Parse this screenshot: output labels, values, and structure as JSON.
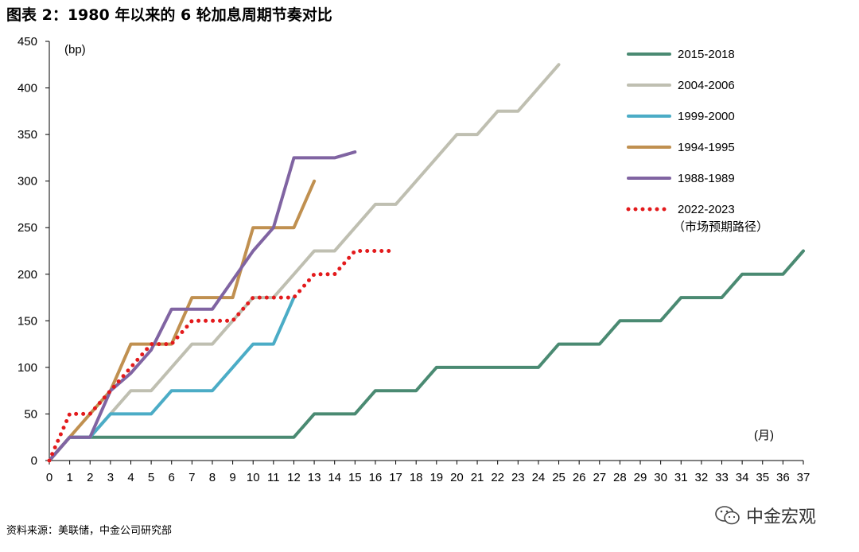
{
  "figure": {
    "title": "图表 2：1980 年以来的 6 轮加息周期节奏对比",
    "source": "资料来源：美联储，中金公司研究部",
    "brand": "中金宏观",
    "brand_icon": "wechat-icon"
  },
  "chart_data": {
    "type": "line",
    "title": "",
    "ylabel": "(bp)",
    "xlabel": "(月)",
    "xlim": [
      0,
      37
    ],
    "ylim": [
      0,
      450
    ],
    "x_ticks": [
      0,
      1,
      2,
      3,
      4,
      5,
      6,
      7,
      8,
      9,
      10,
      11,
      12,
      13,
      14,
      15,
      16,
      17,
      18,
      19,
      20,
      21,
      22,
      23,
      24,
      25,
      26,
      27,
      28,
      29,
      30,
      31,
      32,
      33,
      34,
      35,
      36,
      37
    ],
    "y_ticks": [
      0,
      50,
      100,
      150,
      200,
      250,
      300,
      350,
      400,
      450
    ],
    "grid": false,
    "legend_position": "top-right",
    "series": [
      {
        "name": "2015-2018",
        "color": "#4a8a72",
        "style": "solid",
        "x": [
          0,
          1,
          2,
          3,
          4,
          5,
          6,
          7,
          8,
          9,
          10,
          11,
          12,
          13,
          14,
          15,
          16,
          17,
          18,
          19,
          20,
          21,
          22,
          23,
          24,
          25,
          26,
          27,
          28,
          29,
          30,
          31,
          32,
          33,
          34,
          35,
          36,
          37
        ],
        "y": [
          0,
          25,
          25,
          25,
          25,
          25,
          25,
          25,
          25,
          25,
          25,
          25,
          25,
          50,
          50,
          50,
          75,
          75,
          75,
          100,
          100,
          100,
          100,
          100,
          100,
          125,
          125,
          125,
          150,
          150,
          150,
          175,
          175,
          175,
          200,
          200,
          200,
          225
        ]
      },
      {
        "name": "2004-2006",
        "color": "#bfbfb1",
        "style": "solid",
        "x": [
          0,
          1,
          2,
          3,
          4,
          5,
          6,
          7,
          8,
          9,
          10,
          11,
          12,
          13,
          14,
          15,
          16,
          17,
          18,
          19,
          20,
          21,
          22,
          23,
          24,
          25
        ],
        "y": [
          0,
          25,
          25,
          50,
          75,
          75,
          100,
          125,
          125,
          150,
          175,
          175,
          200,
          225,
          225,
          250,
          275,
          275,
          300,
          325,
          350,
          350,
          375,
          375,
          400,
          425
        ]
      },
      {
        "name": "1999-2000",
        "color": "#4bacc6",
        "style": "solid",
        "x": [
          0,
          1,
          2,
          3,
          4,
          5,
          6,
          7,
          8,
          9,
          10,
          11,
          12
        ],
        "y": [
          0,
          25,
          25,
          50,
          50,
          50,
          75,
          75,
          75,
          100,
          125,
          125,
          175
        ]
      },
      {
        "name": "1994-1995",
        "color": "#c09050",
        "style": "solid",
        "x": [
          0,
          1,
          2,
          3,
          4,
          5,
          6,
          7,
          8,
          9,
          10,
          11,
          12,
          13
        ],
        "y": [
          0,
          25,
          50,
          75,
          125,
          125,
          125,
          175,
          175,
          175,
          250,
          250,
          250,
          300
        ]
      },
      {
        "name": "1988-1989",
        "color": "#8064a2",
        "style": "solid",
        "x": [
          0,
          1,
          2,
          3,
          4,
          5,
          6,
          7,
          8,
          9,
          10,
          11,
          12,
          13,
          14,
          15
        ],
        "y": [
          0,
          25,
          25,
          75,
          93.75,
          118.75,
          162.5,
          162.5,
          162.5,
          193.75,
          225,
          250,
          325,
          325,
          325,
          331.25
        ]
      },
      {
        "name": "2022-2023",
        "subtitle": "（市场预期路径）",
        "color": "#e31a1c",
        "style": "dotted",
        "x": [
          0,
          1,
          2,
          3,
          4,
          5,
          6,
          7,
          8,
          9,
          10,
          11,
          12,
          13,
          14,
          15,
          16,
          17
        ],
        "y": [
          0,
          50,
          50,
          75,
          100,
          125,
          125,
          150,
          150,
          150,
          175,
          175,
          175,
          200,
          200,
          225,
          225,
          225
        ]
      }
    ]
  }
}
